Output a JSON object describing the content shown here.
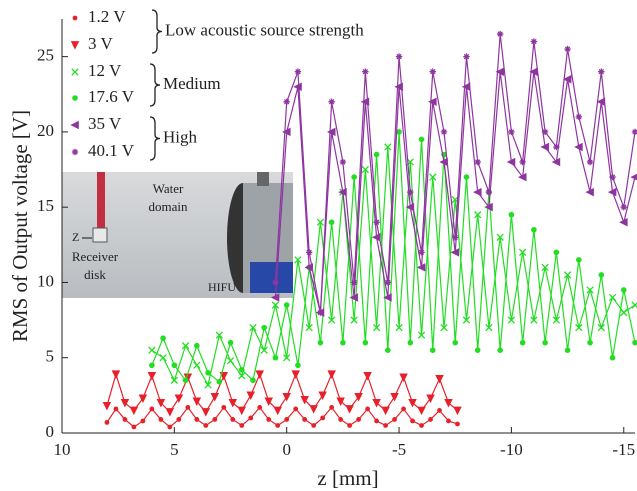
{
  "chart_data": {
    "type": "line",
    "x_label": "z [mm]",
    "y_label": "RMS of Output voltage [V]",
    "xlim": [
      10,
      -15.5
    ],
    "xticks": [
      10,
      5,
      0,
      -5,
      -10,
      -15
    ],
    "ylim": [
      0,
      27.5
    ],
    "yticks": [
      0,
      5,
      10,
      15,
      20,
      25
    ],
    "grid": false,
    "groups": [
      "Low acoustic source strength",
      "Medium",
      "High"
    ],
    "series": [
      {
        "name": "1.2 V",
        "color": "#e8202a",
        "marker": "circle",
        "x": [
          8,
          7.6,
          7.2,
          6.8,
          6.4,
          6,
          5.6,
          5.2,
          4.8,
          4.4,
          4,
          3.6,
          3.2,
          2.8,
          2.4,
          2,
          1.6,
          1.2,
          0.8,
          0.4,
          0,
          -0.4,
          -0.8,
          -1.2,
          -1.6,
          -2,
          -2.4,
          -2.8,
          -3.2,
          -3.6,
          -4,
          -4.4,
          -4.8,
          -5.2,
          -5.6,
          -6,
          -6.4,
          -6.8,
          -7.2,
          -7.6
        ],
        "values": [
          0.7,
          1.6,
          0.9,
          0.4,
          0.8,
          1.6,
          0.9,
          0.4,
          0.9,
          1.7,
          0.9,
          0.5,
          0.9,
          1.7,
          0.9,
          0.5,
          1.0,
          1.7,
          0.9,
          0.5,
          0.9,
          1.6,
          0.9,
          0.5,
          1.0,
          1.7,
          0.9,
          0.5,
          0.9,
          1.6,
          0.8,
          0.5,
          0.9,
          1.6,
          0.8,
          0.5,
          0.9,
          1.5,
          0.8,
          0.6
        ]
      },
      {
        "name": "3 V",
        "color": "#e8202a",
        "marker": "triangle-down",
        "x": [
          8,
          7.6,
          7.2,
          6.8,
          6.4,
          6,
          5.6,
          5.2,
          4.8,
          4.4,
          4,
          3.6,
          3.2,
          2.8,
          2.4,
          2,
          1.6,
          1.2,
          0.8,
          0.4,
          0,
          -0.4,
          -0.8,
          -1.2,
          -1.6,
          -2,
          -2.4,
          -2.8,
          -3.2,
          -3.6,
          -4,
          -4.4,
          -4.8,
          -5.2,
          -5.6,
          -6,
          -6.4,
          -6.8,
          -7.2,
          -7.6
        ],
        "values": [
          1.8,
          3.9,
          2.0,
          1.5,
          2.3,
          3.8,
          2.0,
          1.4,
          2.3,
          3.7,
          2.1,
          1.4,
          2.4,
          3.8,
          2.0,
          1.5,
          2.5,
          3.9,
          2.1,
          1.5,
          2.4,
          3.9,
          2.2,
          1.6,
          2.5,
          3.9,
          2.1,
          1.6,
          2.4,
          3.8,
          2.0,
          1.5,
          2.4,
          3.7,
          2.0,
          1.5,
          2.3,
          3.6,
          2.0,
          1.5
        ]
      },
      {
        "name": "12 V",
        "color": "#22dd22",
        "marker": "x",
        "x": [
          6,
          5.5,
          5,
          4.5,
          4,
          3.5,
          3,
          2.5,
          2,
          1.5,
          1,
          0.5,
          0,
          -0.5,
          -1,
          -1.5,
          -2,
          -2.5,
          -3,
          -3.5,
          -4,
          -4.5,
          -5,
          -5.5,
          -6,
          -6.5,
          -7,
          -7.5,
          -8,
          -8.5,
          -9,
          -9.5,
          -10,
          -10.5,
          -11,
          -11.5,
          -12,
          -12.5,
          -13,
          -13.5,
          -14,
          -14.5,
          -15,
          -15.5
        ],
        "values": [
          5.5,
          5.0,
          3.5,
          5.8,
          4.5,
          3.2,
          6.5,
          4.8,
          3.8,
          7.0,
          5.5,
          8.5,
          5.0,
          11.5,
          7,
          14,
          7.5,
          16,
          7.5,
          17.5,
          7,
          19,
          7,
          18,
          6.5,
          17,
          7,
          15.5,
          7.5,
          14.5,
          7,
          13,
          7.5,
          12,
          7.5,
          11,
          7.5,
          10.5,
          7,
          9.5,
          7,
          9,
          8,
          8.5
        ]
      },
      {
        "name": "17.6 V",
        "color": "#22dd22",
        "marker": "dot",
        "x": [
          6,
          5.5,
          5,
          4.5,
          4,
          3.5,
          3,
          2.5,
          2,
          1.5,
          1,
          0.5,
          0,
          -0.5,
          -1,
          -1.5,
          -2,
          -2.5,
          -3,
          -3.5,
          -4,
          -4.5,
          -5,
          -5.5,
          -6,
          -6.5,
          -7,
          -7.5,
          -8,
          -8.5,
          -9,
          -9.5,
          -10,
          -10.5,
          -11,
          -11.5,
          -12,
          -12.5,
          -13,
          -13.5,
          -14,
          -14.5,
          -15,
          -15.5
        ],
        "values": [
          4.5,
          6.3,
          4.5,
          3.5,
          5.8,
          4.0,
          3.4,
          6.0,
          4.2,
          3.5,
          7.0,
          5.0,
          8.5,
          4.5,
          11,
          6,
          14,
          6,
          17,
          6,
          18.5,
          5.5,
          20,
          6,
          19.5,
          5.5,
          18.5,
          6,
          17,
          5.5,
          16,
          5.5,
          14.5,
          6,
          13.5,
          6,
          12,
          5.5,
          11.5,
          6,
          10.5,
          5,
          9.5,
          6
        ]
      },
      {
        "name": "35 V",
        "color": "#8e35a0",
        "marker": "triangle-left",
        "x": [
          0.5,
          0,
          -0.5,
          -1,
          -1.5,
          -2,
          -2.5,
          -3,
          -3.5,
          -4,
          -4.5,
          -5,
          -5.5,
          -6,
          -6.5,
          -7,
          -7.5,
          -8,
          -8.5,
          -9,
          -9.5,
          -10,
          -10.5,
          -11,
          -11.5,
          -12,
          -12.5,
          -13,
          -13.5,
          -14,
          -14.5,
          -15,
          -15.5
        ],
        "values": [
          9,
          20,
          23,
          11,
          8,
          20,
          16,
          9,
          22,
          13,
          9,
          23,
          15,
          11,
          22,
          18,
          12,
          23,
          16,
          15,
          24,
          18,
          17,
          24,
          19,
          18,
          23.5,
          19,
          16,
          22,
          16,
          14,
          17
        ]
      },
      {
        "name": "40.1 V",
        "color": "#8e35a0",
        "marker": "star",
        "x": [
          0.5,
          0,
          -0.5,
          -1,
          -1.5,
          -2,
          -2.5,
          -3,
          -3.5,
          -4,
          -4.5,
          -5,
          -5.5,
          -6,
          -6.5,
          -7,
          -7.5,
          -8,
          -8.5,
          -9,
          -9.5,
          -10,
          -10.5,
          -11,
          -11.5,
          -12,
          -12.5,
          -13,
          -13.5,
          -14,
          -14.5,
          -15,
          -15.5
        ],
        "values": [
          10,
          22,
          24,
          12,
          8,
          22,
          18,
          10,
          24,
          14,
          10,
          25,
          16,
          12,
          24,
          20,
          13,
          25,
          18,
          16,
          26.5,
          20,
          18,
          26,
          20,
          19,
          25.5,
          21,
          18,
          24,
          17,
          15,
          20
        ]
      }
    ]
  },
  "inset": {
    "water": [
      "Water",
      "domain"
    ],
    "axis": "Z",
    "receiver": [
      "Receiver",
      "disk"
    ],
    "source": "HIFU"
  }
}
